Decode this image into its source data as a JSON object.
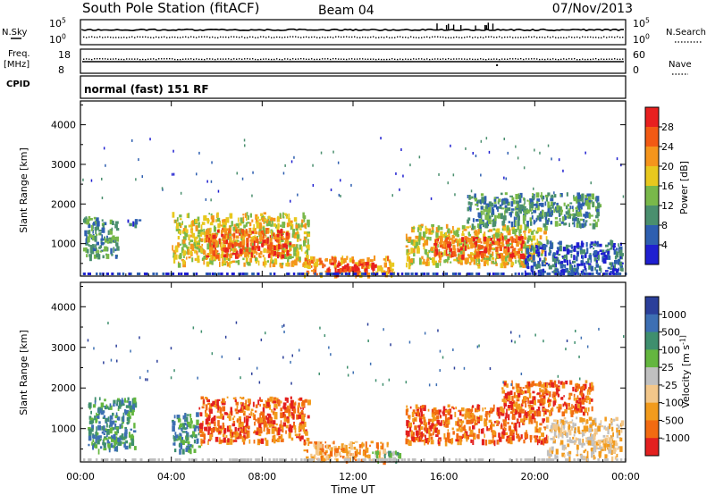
{
  "header": {
    "station": "South Pole Station (fitACF)",
    "beam": "Beam 04",
    "date": "07/Nov/2013",
    "cpid_label": "CPID",
    "cpid_value": "normal (fast) 151 RF"
  },
  "nsky_panel": {
    "left_label": "N.Sky",
    "right_label": "N.Search",
    "left_ticks": [
      "10^5",
      "10^0"
    ],
    "right_ticks": [
      "10^5",
      "10^0"
    ]
  },
  "freq_panel": {
    "left_label_1": "Freq.",
    "left_label_2": "[MHz]",
    "right_label": "Nave",
    "left_ticks": [
      "18",
      "8"
    ],
    "right_ticks": [
      "60",
      "0"
    ]
  },
  "chart_data": [
    {
      "type": "heatmap",
      "quantity": "Power",
      "ylabel": "Slant Range [km]",
      "yticks": [
        1000,
        2000,
        3000,
        4000
      ],
      "ylim": [
        180,
        4600
      ],
      "colorbar_label": "Power [dB]",
      "colorbar_ticks": [
        "28",
        "24",
        "20",
        "16",
        "12",
        "8",
        "4"
      ],
      "colorbar_colors": [
        "#e8201f",
        "#f25a14",
        "#f5951c",
        "#e8c81e",
        "#79b84a",
        "#4a8f6e",
        "#2e5fb0",
        "#1f1fd0"
      ],
      "regions": [
        {
          "t0": 0.1,
          "t1": 1.6,
          "r0": 700,
          "r1": 1700,
          "level": 2
        },
        {
          "t0": 2.0,
          "t1": 2.6,
          "r0": 1500,
          "r1": 1650,
          "level": 1
        },
        {
          "t0": 4.0,
          "t1": 10.0,
          "r0": 500,
          "r1": 1800,
          "level": 4
        },
        {
          "t0": 5.5,
          "t1": 9.2,
          "r0": 700,
          "r1": 1400,
          "level": 6
        },
        {
          "t0": 9.8,
          "t1": 13.8,
          "r0": 250,
          "r1": 700,
          "level": 5
        },
        {
          "t0": 10.8,
          "t1": 13.0,
          "r0": 300,
          "r1": 550,
          "level": 7
        },
        {
          "t0": 14.3,
          "t1": 20.5,
          "r0": 500,
          "r1": 1500,
          "level": 4
        },
        {
          "t0": 15.5,
          "t1": 19.5,
          "r0": 700,
          "r1": 1200,
          "level": 6
        },
        {
          "t0": 17.0,
          "t1": 22.8,
          "r0": 1500,
          "r1": 2300,
          "level": 2
        },
        {
          "t0": 19.5,
          "t1": 23.8,
          "r0": 300,
          "r1": 1100,
          "level": 1
        }
      ]
    },
    {
      "type": "heatmap",
      "quantity": "Velocity",
      "ylabel": "Slant Range [km]",
      "yticks": [
        1000,
        2000,
        3000,
        4000
      ],
      "ylim": [
        180,
        4600
      ],
      "xlabel": "Time UT",
      "xticks": [
        "00:00",
        "04:00",
        "08:00",
        "12:00",
        "16:00",
        "20:00",
        "00:00"
      ],
      "colorbar_label": "Velocity [m s^-1]",
      "colorbar_ticks": [
        "1000",
        "500",
        "100",
        "25",
        "-25",
        "-100",
        "-500",
        "-1000"
      ],
      "colorbar_colors": [
        "#2b3f9a",
        "#3d6fb3",
        "#3f8f6e",
        "#64b63f",
        "#c0c0c0",
        "#f3c78a",
        "#f29b1d",
        "#f26b11",
        "#e3201f"
      ],
      "regions": [
        {
          "t0": 0.3,
          "t1": 2.4,
          "r0": 500,
          "r1": 1800,
          "level": 2
        },
        {
          "t0": 4.0,
          "t1": 5.2,
          "r0": 500,
          "r1": 1450,
          "level": 2
        },
        {
          "t0": 5.2,
          "t1": 10.0,
          "r0": 700,
          "r1": 1800,
          "level": 7
        },
        {
          "t0": 9.8,
          "t1": 13.5,
          "r0": 250,
          "r1": 700,
          "level": 6
        },
        {
          "t0": 12.8,
          "t1": 14.0,
          "r0": 250,
          "r1": 500,
          "level": 3
        },
        {
          "t0": 14.3,
          "t1": 20.5,
          "r0": 700,
          "r1": 1600,
          "level": 7
        },
        {
          "t0": 18.5,
          "t1": 22.5,
          "r0": 1400,
          "r1": 2200,
          "level": 7
        },
        {
          "t0": 20.5,
          "t1": 23.8,
          "r0": 300,
          "r1": 1300,
          "level": 5
        }
      ]
    }
  ],
  "xaxis": {
    "label": "Time UT",
    "ticks": [
      "00:00",
      "04:00",
      "08:00",
      "12:00",
      "16:00",
      "20:00",
      "00:00"
    ]
  }
}
